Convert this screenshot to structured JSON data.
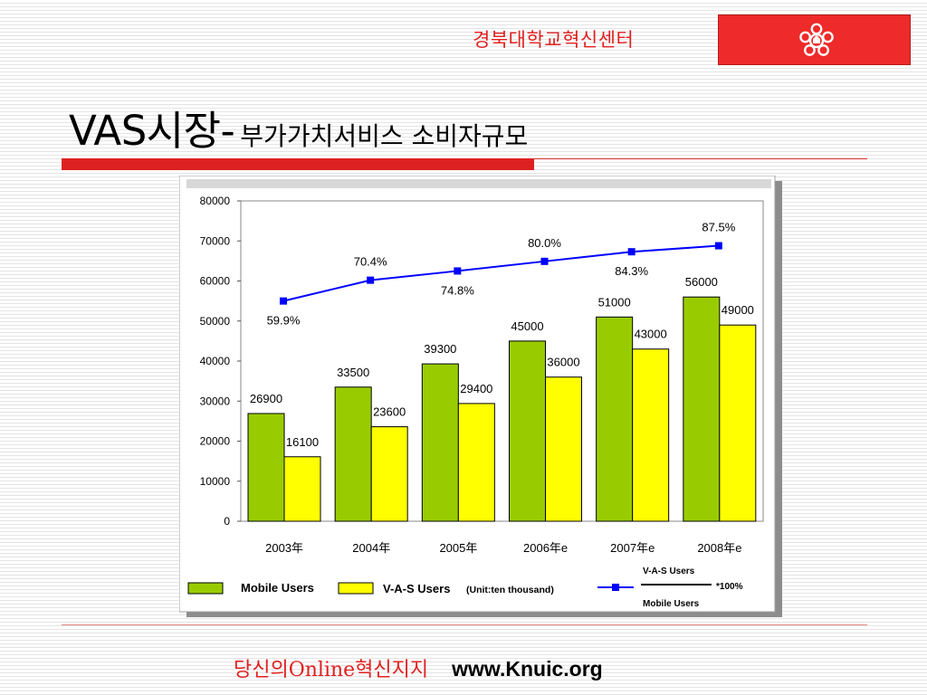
{
  "header": {
    "org_name": "경북대학교혁신센터",
    "brand_color": "#ee2a2a",
    "logo_icon": "university-emblem-icon"
  },
  "slide": {
    "title_main": "VAS시장-",
    "title_sub": "부가가치서비스 소비자규모"
  },
  "chart_data": {
    "type": "bar",
    "categories": [
      "2003年",
      "2004年",
      "2005年",
      "2006年e",
      "2007年e",
      "2008年e"
    ],
    "ylim": [
      0,
      80000
    ],
    "yticks": [
      "80000",
      "70000",
      "60000",
      "50000",
      "40000",
      "30000",
      "20000",
      "10000",
      "0"
    ],
    "series": [
      {
        "name": "Mobile Users",
        "type": "bar",
        "color": "#99cc00",
        "values": [
          26900,
          33500,
          39300,
          45000,
          51000,
          56000
        ]
      },
      {
        "name": "V-A-S Users",
        "type": "bar",
        "color": "#ffff00",
        "values": [
          16100,
          23600,
          29400,
          36000,
          43000,
          49000
        ]
      },
      {
        "type": "line",
        "color": "#0000ff",
        "values": [
          55000,
          60200,
          62500,
          64900,
          67300,
          68800
        ],
        "labels": [
          "59.9%",
          "70.4%",
          "74.8%",
          "80.0%",
          "84.3%",
          "87.5%"
        ]
      }
    ],
    "legend": {
      "mobile": "Mobile Users",
      "vas": "V-A-S Users",
      "unit": "(Unit:ten thousand)",
      "ratio_top": "V-A-S Users",
      "ratio_bottom": "Mobile Users",
      "ratio_mult": "*100%"
    }
  },
  "footer": {
    "slogan": "당신의Online혁신지지",
    "url": "www.Knuic.org"
  }
}
